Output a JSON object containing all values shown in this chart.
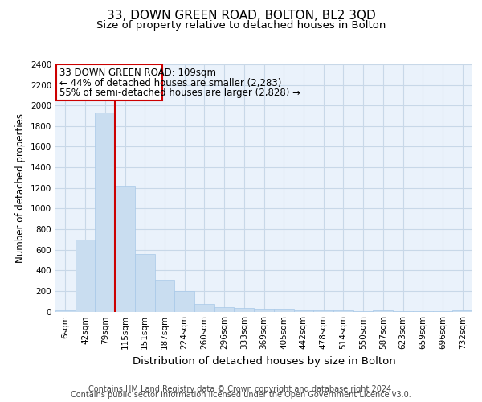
{
  "title": "33, DOWN GREEN ROAD, BOLTON, BL2 3QD",
  "subtitle": "Size of property relative to detached houses in Bolton",
  "xlabel": "Distribution of detached houses by size in Bolton",
  "ylabel": "Number of detached properties",
  "categories": [
    "6sqm",
    "42sqm",
    "79sqm",
    "115sqm",
    "151sqm",
    "187sqm",
    "224sqm",
    "260sqm",
    "296sqm",
    "333sqm",
    "369sqm",
    "405sqm",
    "442sqm",
    "478sqm",
    "514sqm",
    "550sqm",
    "587sqm",
    "623sqm",
    "659sqm",
    "696sqm",
    "732sqm"
  ],
  "values": [
    15,
    700,
    1930,
    1225,
    560,
    305,
    200,
    75,
    45,
    35,
    30,
    25,
    15,
    10,
    10,
    5,
    10,
    5,
    5,
    5,
    15
  ],
  "bar_color": "#c9ddf0",
  "bar_edgecolor": "#a8c8e8",
  "vline_index": 3,
  "vline_color": "#cc0000",
  "ylim": [
    0,
    2400
  ],
  "yticks": [
    0,
    200,
    400,
    600,
    800,
    1000,
    1200,
    1400,
    1600,
    1800,
    2000,
    2200,
    2400
  ],
  "annotation_title": "33 DOWN GREEN ROAD: 109sqm",
  "annotation_line1": "← 44% of detached houses are smaller (2,283)",
  "annotation_line2": "55% of semi-detached houses are larger (2,828) →",
  "annotation_box_color": "#cc0000",
  "grid_color": "#c8d8e8",
  "plot_bg_color": "#eaf2fb",
  "footer_line1": "Contains HM Land Registry data © Crown copyright and database right 2024.",
  "footer_line2": "Contains public sector information licensed under the Open Government Licence v3.0.",
  "title_fontsize": 11,
  "subtitle_fontsize": 9.5,
  "xlabel_fontsize": 9.5,
  "ylabel_fontsize": 8.5,
  "tick_fontsize": 7.5,
  "annotation_title_fontsize": 8.5,
  "annotation_text_fontsize": 8.5,
  "footer_fontsize": 7
}
